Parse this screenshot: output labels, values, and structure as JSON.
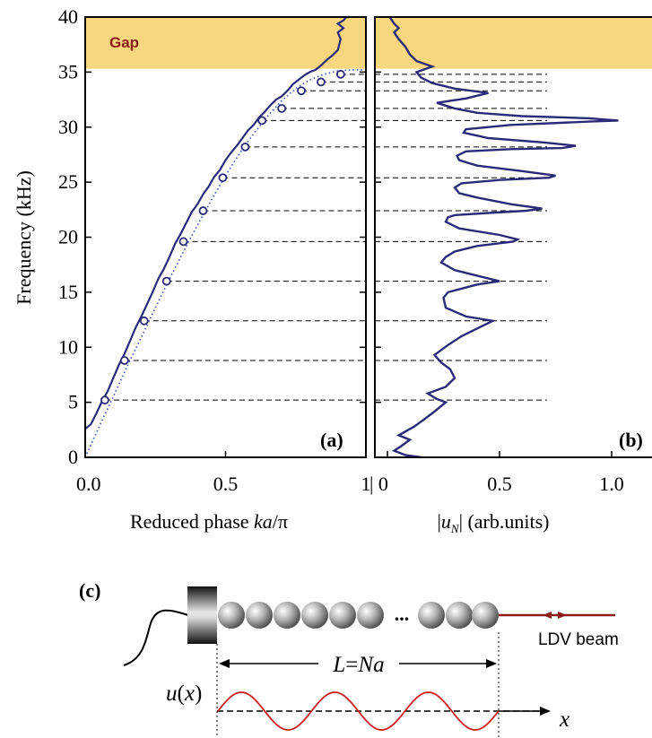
{
  "chart_data": [
    {
      "type": "line",
      "panel_label": "(a)",
      "xlabel": "Reduced phase ka/π",
      "xlabel_parts": {
        "pre": "Reduced phase ",
        "ka": "ka",
        "slash": "/π"
      },
      "ylabel": "Frequency (kHz)",
      "xlim": [
        0,
        1
      ],
      "ylim": [
        0,
        40
      ],
      "x_ticks": [
        "0.0",
        "0.5",
        "1"
      ],
      "x_tick_values": [
        0,
        0.5,
        1
      ],
      "y_ticks": [
        "0",
        "5",
        "10",
        "15",
        "20",
        "25",
        "30",
        "35",
        "40"
      ],
      "y_tick_values": [
        0,
        5,
        10,
        15,
        20,
        25,
        30,
        35,
        40
      ],
      "gap": {
        "label": "Gap",
        "from": 35.3,
        "to": 40,
        "color": "#f9d77e",
        "label_color": "#8b1a1a"
      },
      "series": [
        {
          "kind": "measured",
          "style": "solid",
          "color": "#2b2a78",
          "x": [
            0.0,
            0.02,
            0.04,
            0.06,
            0.08,
            0.1,
            0.12,
            0.14,
            0.16,
            0.18,
            0.2,
            0.22,
            0.24,
            0.26,
            0.28,
            0.3,
            0.32,
            0.34,
            0.36,
            0.38,
            0.4,
            0.42,
            0.44,
            0.46,
            0.48,
            0.5,
            0.52,
            0.54,
            0.56,
            0.58,
            0.6,
            0.62,
            0.64,
            0.66,
            0.68,
            0.7,
            0.72,
            0.74,
            0.76,
            0.78,
            0.8,
            0.82,
            0.84,
            0.86,
            0.88,
            0.9,
            0.91,
            0.9,
            0.92,
            0.9,
            0.92,
            0.93,
            0.94
          ],
          "y": [
            2.6,
            3.0,
            4.0,
            5.1,
            6.0,
            7.2,
            8.4,
            9.4,
            10.6,
            11.8,
            12.8,
            13.9,
            15.0,
            16.2,
            17.1,
            18.2,
            19.4,
            20.3,
            21.3,
            22.3,
            23.0,
            23.9,
            24.6,
            25.5,
            26.1,
            27.0,
            27.7,
            28.3,
            29.0,
            29.7,
            30.2,
            30.9,
            31.4,
            32.0,
            32.5,
            32.8,
            33.3,
            33.9,
            34.3,
            34.7,
            35.0,
            35.2,
            35.6,
            36.1,
            36.5,
            37.0,
            38.0,
            38.6,
            39.0,
            39.4,
            39.7,
            40.0,
            40.0
          ]
        },
        {
          "kind": "theory",
          "style": "dotted",
          "color": "#4a5fc0",
          "x": [
            0.0,
            0.05,
            0.1,
            0.15,
            0.2,
            0.25,
            0.3,
            0.35,
            0.4,
            0.45,
            0.5,
            0.55,
            0.6,
            0.65,
            0.7,
            0.75,
            0.8,
            0.85,
            0.9,
            0.95,
            1.0
          ],
          "y": [
            0.0,
            2.8,
            5.5,
            8.3,
            10.9,
            13.6,
            16.2,
            18.7,
            21.1,
            23.4,
            25.6,
            27.6,
            29.4,
            31.0,
            32.4,
            33.5,
            34.3,
            34.8,
            35.1,
            35.2,
            35.2
          ]
        },
        {
          "kind": "modes",
          "style": "open-circle",
          "color": "#2b2a78",
          "x": [
            0.07,
            0.14,
            0.21,
            0.29,
            0.35,
            0.42,
            0.49,
            0.57,
            0.63,
            0.7,
            0.77,
            0.84,
            0.91
          ],
          "y": [
            5.2,
            8.8,
            12.4,
            16.0,
            19.6,
            22.4,
            25.4,
            28.2,
            30.6,
            31.7,
            33.3,
            34.1,
            34.8
          ]
        }
      ],
      "mode_lines_y": [
        5.2,
        8.8,
        12.4,
        16.0,
        19.6,
        22.4,
        25.4,
        28.2,
        30.6,
        31.7,
        33.3,
        34.1,
        34.8
      ]
    },
    {
      "type": "line",
      "panel_label": "(b)",
      "xlabel": "|uN| (arb.units)",
      "xlabel_parts": {
        "bar1": "|",
        "u": "u",
        "sub": "N",
        "bar2": "|",
        "rest": " (arb.units)"
      },
      "xlim": [
        0,
        1.1
      ],
      "ylim": [
        0,
        40
      ],
      "x_ticks": [
        "| 0",
        "0.5",
        "1.0"
      ],
      "x_tick_values": [
        0,
        0.5,
        1.0
      ],
      "series": [
        {
          "kind": "spectrum",
          "style": "solid",
          "color": "#2b2a78",
          "x": [
            0.15,
            0.08,
            0.03,
            0.06,
            0.1,
            0.05,
            0.12,
            0.16,
            0.2,
            0.26,
            0.22,
            0.18,
            0.26,
            0.3,
            0.28,
            0.24,
            0.21,
            0.27,
            0.33,
            0.38,
            0.47,
            0.35,
            0.26,
            0.25,
            0.27,
            0.4,
            0.5,
            0.42,
            0.3,
            0.24,
            0.26,
            0.3,
            0.4,
            0.56,
            0.58,
            0.5,
            0.32,
            0.26,
            0.27,
            0.3,
            0.45,
            0.62,
            0.69,
            0.55,
            0.4,
            0.32,
            0.3,
            0.33,
            0.5,
            0.72,
            0.75,
            0.6,
            0.4,
            0.32,
            0.31,
            0.35,
            0.55,
            0.78,
            0.84,
            0.7,
            0.45,
            0.34,
            0.35,
            0.55,
            0.9,
            1.03,
            0.9,
            0.6,
            0.4,
            0.3,
            0.22,
            0.35,
            0.45,
            0.3,
            0.2,
            0.15,
            0.13,
            0.2,
            0.13,
            0.1,
            0.08,
            0.05,
            0.03,
            0.05,
            0.03,
            0.02,
            0.01
          ],
          "y": [
            0.0,
            0.2,
            0.6,
            1.0,
            1.6,
            2.0,
            2.8,
            3.4,
            4.0,
            5.0,
            5.3,
            5.8,
            6.4,
            7.2,
            8.0,
            8.6,
            9.3,
            10.2,
            11.0,
            11.5,
            12.4,
            12.8,
            13.6,
            14.5,
            15.0,
            15.7,
            16.0,
            16.4,
            17.0,
            17.7,
            18.2,
            18.7,
            19.2,
            19.6,
            19.8,
            20.2,
            20.8,
            21.4,
            21.8,
            22.0,
            22.2,
            22.4,
            22.6,
            23.0,
            23.6,
            24.0,
            24.5,
            24.9,
            25.2,
            25.4,
            25.6,
            26.0,
            26.5,
            27.0,
            27.4,
            27.8,
            28.0,
            28.1,
            28.3,
            28.6,
            29.0,
            29.5,
            29.8,
            30.2,
            30.5,
            30.6,
            30.8,
            31.0,
            31.3,
            31.7,
            32.2,
            32.6,
            33.1,
            33.5,
            34.0,
            34.5,
            35.0,
            35.5,
            36.0,
            36.6,
            37.3,
            38.0,
            38.6,
            39.0,
            39.4,
            39.7,
            40.0
          ]
        }
      ]
    }
  ],
  "diagram": {
    "panel_label": "(c)",
    "ellipsis": "...",
    "length_label": "L=Na",
    "length_parts": {
      "L": "L",
      "eq": "=",
      "Na": "Na"
    },
    "ldv_label": "LDV beam",
    "displacement_label": "u(x)",
    "displacement_parts": {
      "u": "u",
      "open": "(",
      "x": "x",
      "close": ")"
    },
    "axis_label": "x",
    "wave_color": "#cc1f1f",
    "beam_color": "#8b1a1a"
  }
}
